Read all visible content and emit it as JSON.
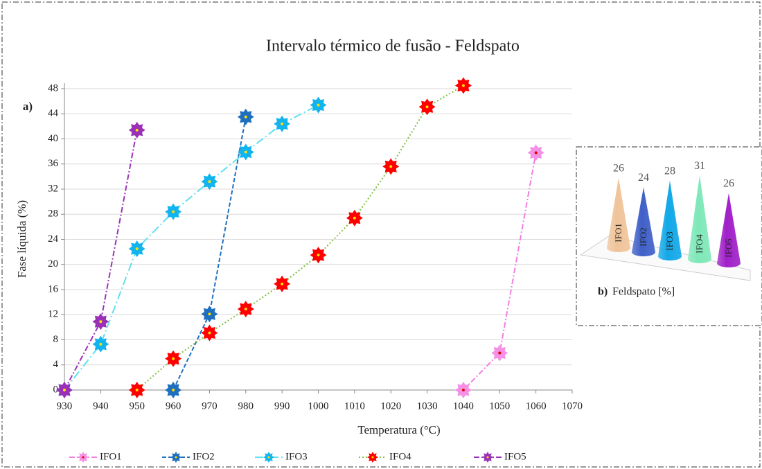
{
  "chart_data": [
    {
      "type": "line",
      "title": "Intervalo térmico de fusão - Feldspato",
      "panel_label": "a)",
      "x_label": "Temperatura  (°C)",
      "y_label": "Fase líquida (%)",
      "xlim": [
        930,
        1070
      ],
      "xticks": [
        930,
        940,
        950,
        960,
        970,
        980,
        990,
        1000,
        1010,
        1020,
        1030,
        1040,
        1050,
        1060,
        1070
      ],
      "ylim": [
        0,
        48
      ],
      "yticks": [
        0,
        4,
        8,
        12,
        16,
        20,
        24,
        28,
        32,
        36,
        40,
        44,
        48
      ],
      "grid": true,
      "legend": "bottom",
      "series": [
        {
          "name": "IFO1",
          "color": "#f07ee0",
          "marker_color": "#f490e6",
          "marker_center": "#e00000",
          "dash": "dashdot",
          "x": [
            1040,
            1050,
            1060
          ],
          "values": [
            0,
            5.9,
            37.8
          ]
        },
        {
          "name": "IFO2",
          "color": "#1f6fbf",
          "marker_color": "#1f6fbf",
          "marker_center": "#ffe000",
          "dash": "dash",
          "x": [
            960,
            970,
            980
          ],
          "values": [
            0,
            12.1,
            43.5
          ]
        },
        {
          "name": "IFO3",
          "color": "#5ee0f0",
          "marker_color": "#12b4f0",
          "marker_center": "#ffe000",
          "dash": "longdashdot",
          "x": [
            930,
            940,
            950,
            960,
            970,
            980,
            990,
            1000
          ],
          "values": [
            0,
            7.3,
            22.5,
            28.4,
            33.2,
            37.9,
            42.4,
            45.4
          ]
        },
        {
          "name": "IFO4",
          "color": "#80c040",
          "marker_color": "#ff0000",
          "marker_center": "#ffe000",
          "dash": "dot",
          "x": [
            950,
            960,
            970,
            980,
            990,
            1000,
            1010,
            1020,
            1030,
            1040
          ],
          "values": [
            0,
            5,
            9.1,
            12.9,
            16.9,
            21.5,
            27.4,
            35.6,
            45.1,
            48.5
          ]
        },
        {
          "name": "IFO5",
          "color": "#9a30b8",
          "marker_color": "#9a30b8",
          "marker_center": "#ffe000",
          "dash": "dashdot",
          "x": [
            930,
            940,
            950
          ],
          "values": [
            0,
            10.9,
            41.4
          ]
        }
      ]
    },
    {
      "type": "cone",
      "panel_label": "b)",
      "title": "Feldspato [%]",
      "categories": [
        "IFO1",
        "IFO2",
        "IFO3",
        "IFO4",
        "IFO5"
      ],
      "values": [
        26,
        24,
        28,
        31,
        26
      ],
      "colors": [
        "#f0c49a",
        "#3f60c8",
        "#12a8e8",
        "#7ee8b8",
        "#a020c8"
      ]
    }
  ]
}
